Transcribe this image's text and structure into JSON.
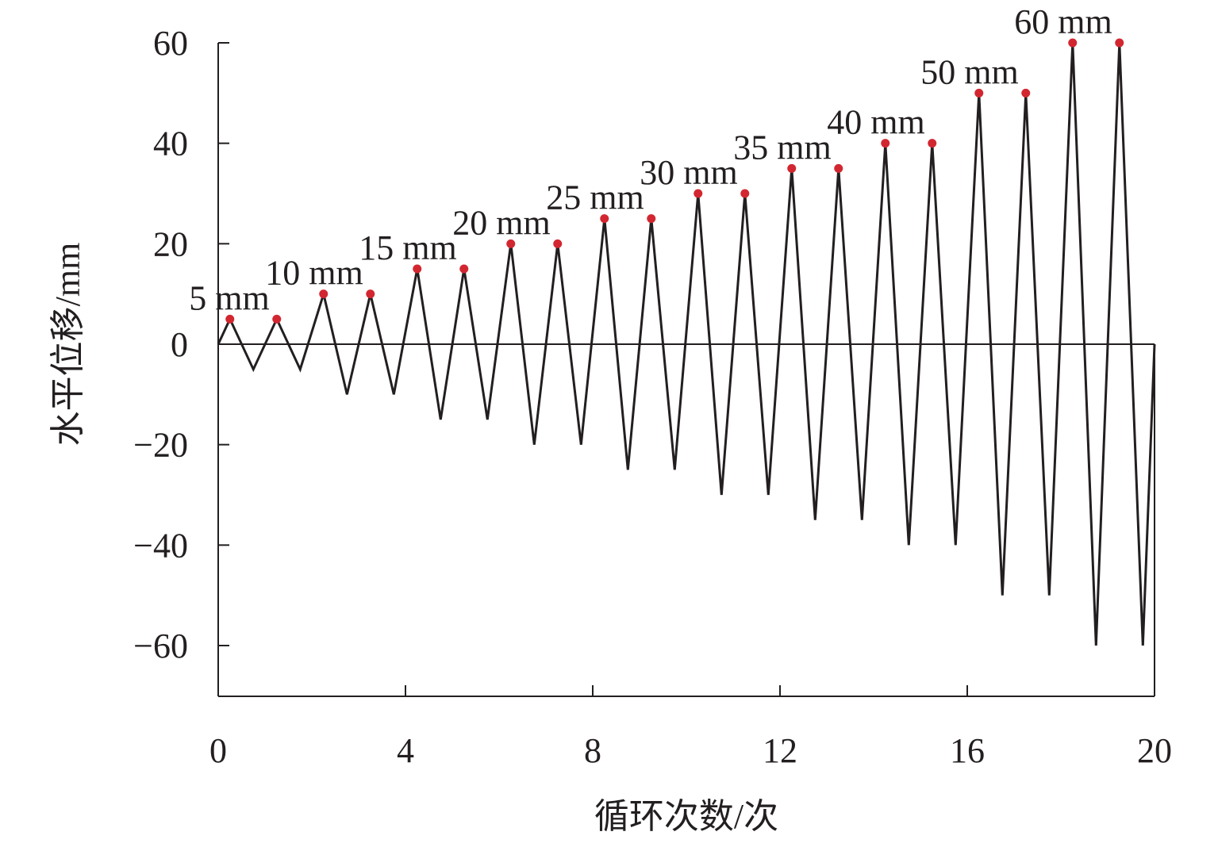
{
  "chart_data": {
    "type": "line",
    "title": "",
    "xlabel": "循环次数/次",
    "ylabel": "水平位移/mm",
    "xlim": [
      0,
      20
    ],
    "ylim": [
      -70,
      60
    ],
    "xticks": [
      0,
      4,
      8,
      12,
      16,
      20
    ],
    "yticks": [
      60,
      40,
      20,
      0,
      -20,
      -40,
      -60
    ],
    "xtick_labels": [
      "0",
      "4",
      "8",
      "12",
      "16",
      "20"
    ],
    "ytick_labels": [
      "60",
      "40",
      "20",
      "0",
      "−20",
      "−40",
      "−60"
    ],
    "grid": false,
    "line_color": "#231f20",
    "marker_color": "#d22730",
    "series": [
      {
        "x": [
          0,
          0.25,
          0.75,
          1.25,
          1.75,
          2.25,
          2.75,
          3.25,
          3.75,
          4.25,
          4.75,
          5.25,
          5.75,
          6.25,
          6.75,
          7.25,
          7.75,
          8.25,
          8.75,
          9.25,
          9.75,
          10.25,
          10.75,
          11.25,
          11.75,
          12.25,
          12.75,
          13.25,
          13.75,
          14.25,
          14.75,
          15.25,
          15.75,
          16.25,
          16.75,
          17.25,
          17.75,
          18.25,
          18.75,
          19.25,
          19.75,
          20
        ],
        "y": [
          0,
          5,
          -5,
          5,
          -5,
          10,
          -10,
          10,
          -10,
          15,
          -15,
          15,
          -15,
          20,
          -20,
          20,
          -20,
          25,
          -25,
          25,
          -25,
          30,
          -30,
          30,
          -30,
          35,
          -35,
          35,
          -35,
          40,
          -40,
          40,
          -40,
          50,
          -50,
          50,
          -50,
          60,
          -60,
          60,
          -60,
          0
        ]
      }
    ],
    "peaks": {
      "x": [
        0.25,
        1.25,
        2.25,
        3.25,
        4.25,
        5.25,
        6.25,
        7.25,
        8.25,
        9.25,
        10.25,
        11.25,
        12.25,
        13.25,
        14.25,
        15.25,
        16.25,
        17.25,
        18.25,
        19.25
      ],
      "y": [
        5,
        5,
        10,
        10,
        15,
        15,
        20,
        20,
        25,
        25,
        30,
        30,
        35,
        35,
        40,
        40,
        50,
        50,
        60,
        60
      ]
    },
    "annotations": [
      {
        "text": "5 mm",
        "x": 0.25,
        "y": 5
      },
      {
        "text": "10 mm",
        "x": 2.25,
        "y": 10
      },
      {
        "text": "15 mm",
        "x": 4.25,
        "y": 15
      },
      {
        "text": "20 mm",
        "x": 6.25,
        "y": 20
      },
      {
        "text": "25 mm",
        "x": 8.25,
        "y": 25
      },
      {
        "text": "30 mm",
        "x": 10.25,
        "y": 30
      },
      {
        "text": "35 mm",
        "x": 12.25,
        "y": 35
      },
      {
        "text": "40 mm",
        "x": 14.25,
        "y": 40
      },
      {
        "text": "50 mm",
        "x": 16.25,
        "y": 50
      },
      {
        "text": "60 mm",
        "x": 18.25,
        "y": 60
      }
    ]
  }
}
